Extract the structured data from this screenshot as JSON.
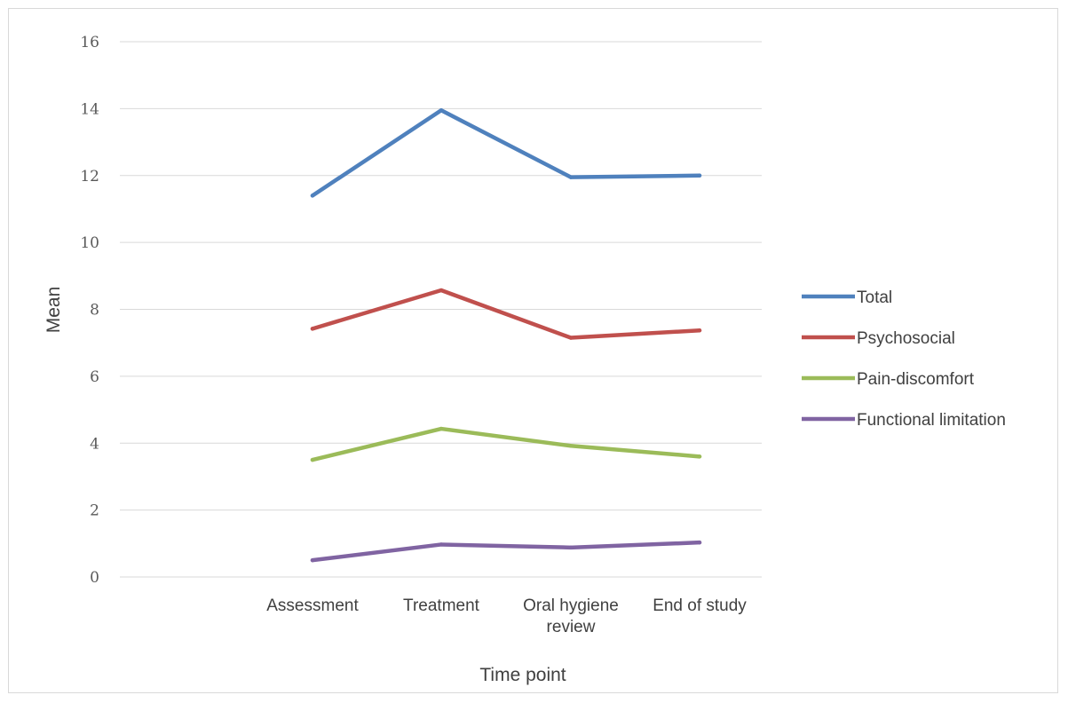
{
  "chart_data": {
    "type": "line",
    "title": "",
    "xlabel": "Time point",
    "ylabel": "Mean",
    "categories": [
      [
        "Assessment"
      ],
      [
        "Treatment"
      ],
      [
        "Oral hygiene",
        "review"
      ],
      [
        "End of study"
      ]
    ],
    "ylim": [
      0,
      16
    ],
    "yticks": [
      0,
      2,
      4,
      6,
      8,
      10,
      12,
      14,
      16
    ],
    "grid": true,
    "legend_position": "right",
    "series": [
      {
        "name": "Total",
        "color": "#4f81bd",
        "values": [
          11.4,
          13.95,
          11.95,
          12.0
        ]
      },
      {
        "name": "Psychosocial",
        "color": "#c0504d",
        "values": [
          7.42,
          8.57,
          7.15,
          7.37
        ]
      },
      {
        "name": "Pain-discomfort",
        "color": "#9bbb59",
        "values": [
          3.5,
          4.43,
          3.92,
          3.6
        ]
      },
      {
        "name": "Functional limitation",
        "color": "#8064a2",
        "values": [
          0.5,
          0.97,
          0.88,
          1.03
        ]
      }
    ]
  }
}
